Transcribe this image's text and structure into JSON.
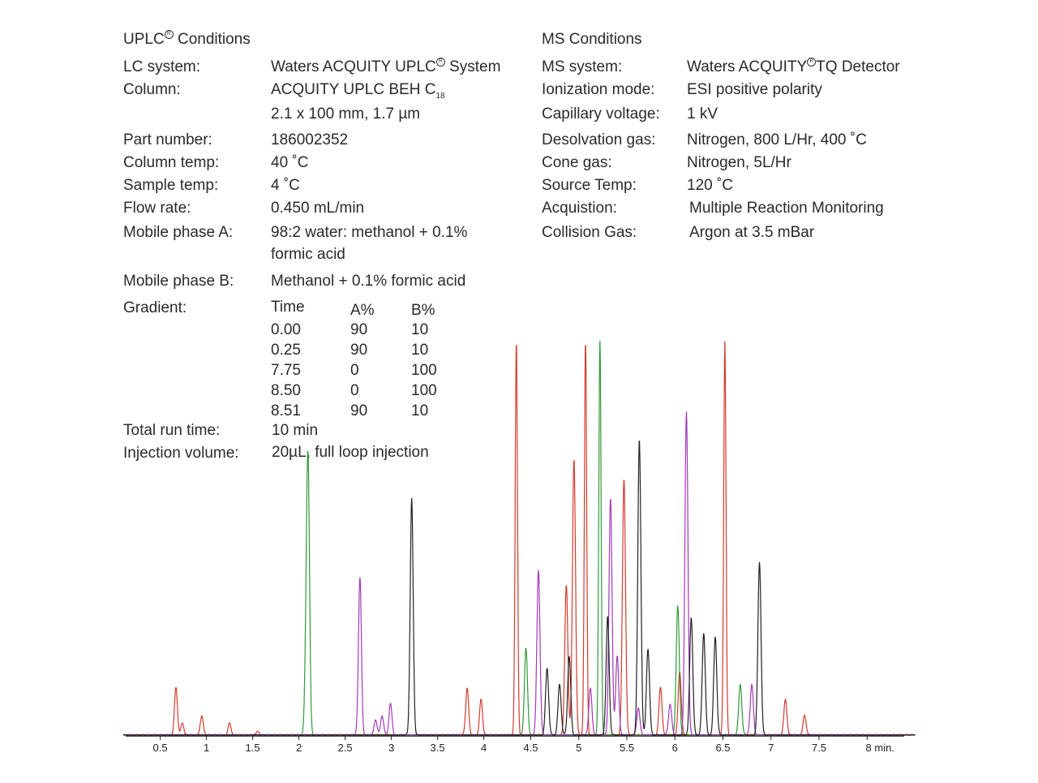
{
  "uplc": {
    "title": "UPLC",
    "title_suffix": "Conditions",
    "rows": [
      {
        "label": "LC system:",
        "value": "Waters ACQUITY UPLC",
        "value_suffix": "System"
      },
      {
        "label": "Column:",
        "value": "ACQUITY UPLC BEH C",
        "sub": "18"
      },
      {
        "label": "",
        "value": "2.1 x 100 mm, 1.7 µm"
      },
      {
        "label": "Part number:",
        "value": "186002352"
      },
      {
        "label": "Column temp:",
        "value": "40 ˚C"
      },
      {
        "label": "Sample temp:",
        "value": "4 ˚C"
      },
      {
        "label": "Flow rate:",
        "value": "0.450 mL/min"
      },
      {
        "label": "Mobile phase A:",
        "value": "98:2 water: methanol + 0.1%"
      },
      {
        "label": "",
        "value": "formic acid"
      },
      {
        "label": "Mobile phase B:",
        "value": "Methanol + 0.1% formic acid"
      },
      {
        "label": "Gradient:",
        "value": ""
      }
    ],
    "gradient": {
      "headers": [
        "Time",
        "A%",
        "B%"
      ],
      "rows": [
        [
          "0.00",
          "90",
          "10"
        ],
        [
          "0.25",
          "90",
          "10"
        ],
        [
          "7.75",
          "0",
          "100"
        ],
        [
          "8.50",
          "0",
          "100"
        ],
        [
          "8.51",
          "90",
          "10"
        ]
      ]
    },
    "run_time_label": "Total run time:",
    "run_time": "10  min",
    "injection_label": "Injection volume:",
    "injection": "20µL, full loop injection"
  },
  "ms": {
    "title": "MS Conditions",
    "rows": [
      {
        "label": "MS system:",
        "value": "Waters ACQUITY",
        "value_suffix": "TQ Detector"
      },
      {
        "label": "Ionization mode:",
        "value": "ESI positive polarity"
      },
      {
        "label": "Capillary voltage:",
        "value": "1 kV"
      },
      {
        "label": "Desolvation gas:",
        "value": "Nitrogen, 800 L/Hr, 400 ˚C"
      },
      {
        "label": "Cone gas:",
        "value": "Nitrogen, 5L/Hr"
      },
      {
        "label": "Source Temp:",
        "value": "120  ˚C"
      },
      {
        "label": "Acquistion:",
        "value": "Multiple Reaction Monitoring"
      },
      {
        "label": "Collision Gas:",
        "value": "Argon at 3.5 mBar"
      }
    ]
  },
  "chart_data": {
    "type": "line",
    "title": "",
    "xlabel": "",
    "ylabel": "",
    "x_unit": "min.",
    "xlim": [
      0.1,
      8.5
    ],
    "ylim": [
      0,
      100
    ],
    "x_ticks": [
      0.5,
      1,
      1.5,
      2,
      2.5,
      3,
      3.5,
      4,
      4.5,
      5,
      5.5,
      6,
      6.5,
      7,
      7.5,
      8
    ],
    "x_tick_labels": [
      "0.5",
      "1",
      "1.5",
      "2",
      "2.5",
      "3",
      "3.5",
      "4",
      "4.5",
      "5",
      "5.5",
      "6",
      "6.5",
      "7",
      "7.5",
      "8 min."
    ],
    "grid": false,
    "series": [
      {
        "color": "#d43a2f",
        "peaks": [
          [
            0.67,
            12
          ],
          [
            0.74,
            3
          ],
          [
            0.95,
            5
          ],
          [
            1.25,
            3
          ],
          [
            1.55,
            1
          ],
          [
            3.82,
            12
          ],
          [
            3.97,
            9
          ],
          [
            4.35,
            100
          ],
          [
            4.87,
            38
          ],
          [
            4.95,
            70
          ],
          [
            5.07,
            100
          ],
          [
            5.47,
            65
          ],
          [
            5.85,
            12
          ],
          [
            6.05,
            16
          ],
          [
            6.52,
            100
          ],
          [
            7.15,
            9
          ],
          [
            7.35,
            5
          ]
        ]
      },
      {
        "color": "#2f9a3a",
        "peaks": [
          [
            2.1,
            62
          ],
          [
            2.08,
            20
          ],
          [
            4.45,
            22
          ],
          [
            5.22,
            100
          ],
          [
            6.03,
            33
          ],
          [
            6.68,
            13
          ]
        ]
      },
      {
        "color": "#a13ab8",
        "peaks": [
          [
            2.66,
            40
          ],
          [
            2.83,
            4
          ],
          [
            2.9,
            5
          ],
          [
            2.99,
            8
          ],
          [
            4.58,
            42
          ],
          [
            5.12,
            12
          ],
          [
            5.33,
            60
          ],
          [
            5.4,
            20
          ],
          [
            5.62,
            7
          ],
          [
            5.95,
            8
          ],
          [
            6.12,
            82
          ],
          [
            6.8,
            13
          ]
        ]
      },
      {
        "color": "#222222",
        "peaks": [
          [
            3.22,
            60
          ],
          [
            4.67,
            17
          ],
          [
            4.8,
            13
          ],
          [
            4.9,
            20
          ],
          [
            5.3,
            30
          ],
          [
            5.63,
            75
          ],
          [
            5.72,
            22
          ],
          [
            6.17,
            30
          ],
          [
            6.3,
            26
          ],
          [
            6.42,
            25
          ],
          [
            6.88,
            44
          ]
        ]
      }
    ]
  }
}
